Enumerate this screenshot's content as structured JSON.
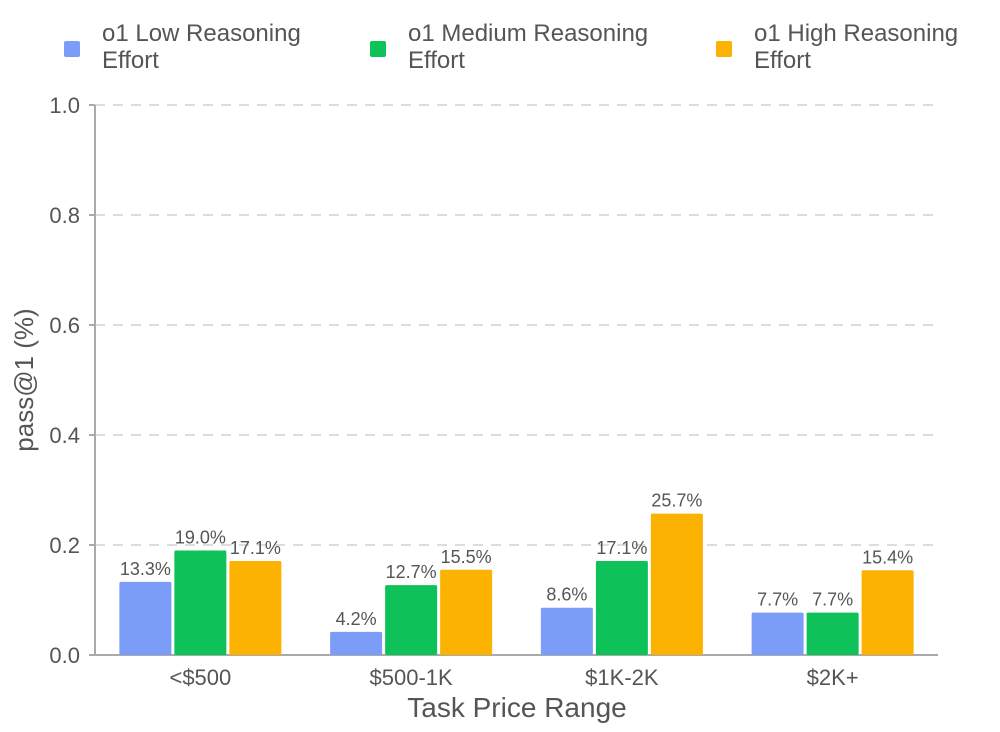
{
  "chart_data": {
    "type": "bar",
    "xlabel": "Task Price Range",
    "ylabel": "pass@1 (%)",
    "ylim": [
      0,
      1.0
    ],
    "yticks": [
      "0.0",
      "0.2",
      "0.4",
      "0.6",
      "0.8",
      "1.0"
    ],
    "grid": "horizontal dashed",
    "legend_position": "top",
    "categories": [
      "<$500",
      "$500-1K",
      "$1K-2K",
      "$2K+"
    ],
    "series": [
      {
        "name": "o1 Low Reasoning\nEffort",
        "color": "#7b9cf7",
        "values": [
          0.133,
          0.042,
          0.086,
          0.077
        ],
        "labels": [
          "13.3%",
          "4.2%",
          "8.6%",
          "7.7%"
        ]
      },
      {
        "name": "o1 Medium Reasoning\nEffort",
        "color": "#0ec158",
        "values": [
          0.19,
          0.127,
          0.171,
          0.077
        ],
        "labels": [
          "19.0%",
          "12.7%",
          "17.1%",
          "7.7%"
        ]
      },
      {
        "name": "o1 High Reasoning\nEffort",
        "color": "#fbb200",
        "values": [
          0.171,
          0.155,
          0.257,
          0.154
        ],
        "labels": [
          "17.1%",
          "15.5%",
          "25.7%",
          "15.4%"
        ]
      }
    ]
  }
}
